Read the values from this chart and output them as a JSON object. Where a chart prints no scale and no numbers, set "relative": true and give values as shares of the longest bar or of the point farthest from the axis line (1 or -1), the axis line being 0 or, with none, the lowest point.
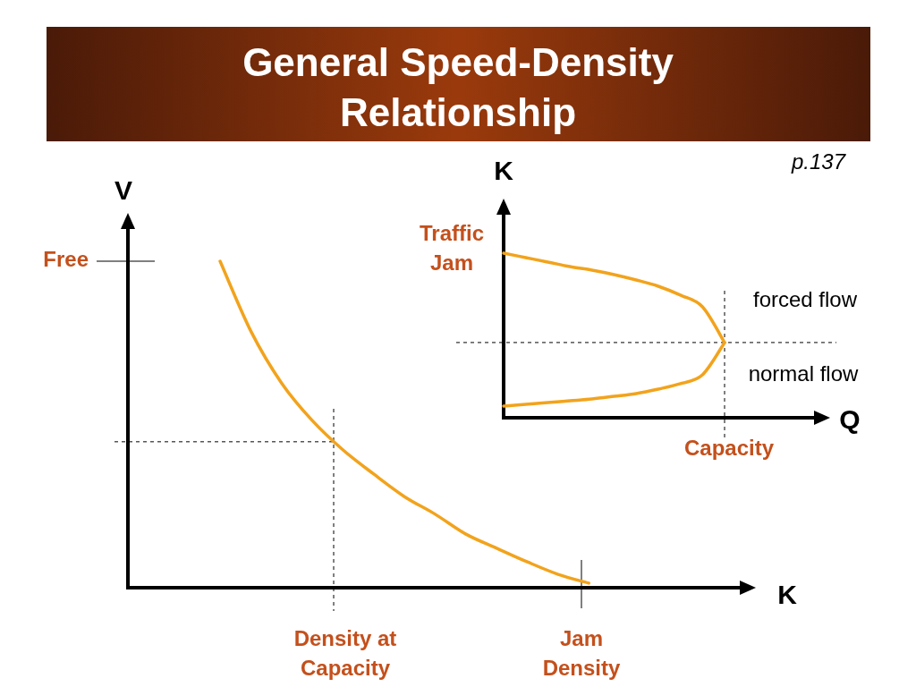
{
  "chart_data": [
    {
      "type": "line",
      "title": "General Speed-Density Relationship",
      "xlabel": "K",
      "ylabel": "V",
      "relative": true,
      "color": "#f2a31c",
      "categories": [
        null,
        null,
        null,
        null,
        null,
        null,
        null,
        null,
        null,
        null,
        null,
        null,
        null,
        null,
        null,
        null,
        null,
        null,
        null,
        null,
        null
      ],
      "values": [
        null,
        null,
        null,
        1.0,
        0.786,
        0.627,
        0.512,
        0.422,
        0.348,
        0.279,
        0.225,
        0.164,
        0.121,
        0.079,
        0.041,
        0.014,
        null,
        null,
        null,
        null,
        null
      ],
      "ref_lines": [
        {
          "axis": "y",
          "value": 1.0,
          "label": "Free",
          "line_style": "solid",
          "color": "#000000"
        },
        {
          "axis": "y",
          "value": 0.447,
          "line_style": "dashed",
          "color": "#000000"
        }
      ],
      "annotations": [
        "Density at Capacity",
        "Jam Density"
      ]
    },
    {
      "type": "line",
      "xlabel": "Q",
      "ylabel": "K",
      "relative": true,
      "categories": [
        null,
        null,
        null,
        null,
        null,
        null,
        null,
        null,
        null,
        null,
        null,
        null,
        null,
        null,
        null,
        null
      ],
      "series": [
        {
          "color": "#f2a31c",
          "values": [
            1.0,
            0.973,
            0.946,
            0.918,
            0.897,
            0.87,
            0.837,
            0.799,
            0.745,
            0.674,
            0.457,
            null,
            null,
            null,
            null,
            null
          ]
        },
        {
          "color": "#f2a31c",
          "values": [
            0.071,
            0.082,
            0.092,
            0.103,
            0.114,
            0.13,
            0.147,
            0.174,
            0.207,
            0.261,
            0.457,
            null,
            null,
            null,
            null,
            null
          ]
        }
      ],
      "ref_lines": [
        {
          "axis": "y",
          "value": 0.457,
          "line_style": "dashed",
          "color": "#000000"
        }
      ],
      "annotations": [
        "Traffic Jam",
        "forced flow",
        "normal flow",
        "p.137",
        "Capacity"
      ]
    }
  ]
}
